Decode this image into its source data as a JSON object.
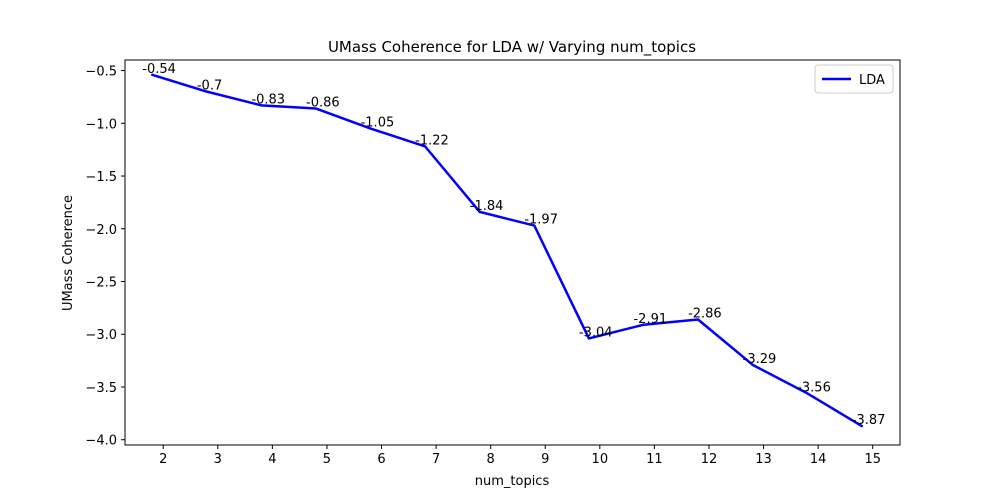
{
  "chart_data": {
    "type": "line",
    "title": "UMass Coherence for LDA w/ Varying num_topics",
    "xlabel": "num_topics",
    "ylabel": "UMass Coherence",
    "xlim": [
      1.3,
      15.5
    ],
    "ylim": [
      -4.05,
      -0.4
    ],
    "x_ticks": [
      2,
      3,
      4,
      5,
      6,
      7,
      8,
      9,
      10,
      11,
      12,
      13,
      14,
      15
    ],
    "y_ticks": [
      -4.0,
      -3.5,
      -3.0,
      -2.5,
      -2.0,
      -1.5,
      -1.0,
      -0.5
    ],
    "y_tick_labels": [
      "−4.0",
      "−3.5",
      "−3.0",
      "−2.5",
      "−2.0",
      "−1.5",
      "−1.0",
      "−0.5"
    ],
    "grid": false,
    "legend": {
      "placement": "top-right"
    },
    "series": [
      {
        "name": "LDA",
        "color": "#0000ff",
        "x": [
          1.8,
          2.8,
          3.8,
          4.8,
          5.8,
          6.8,
          7.8,
          8.8,
          9.8,
          10.8,
          11.8,
          12.8,
          13.8,
          14.8
        ],
        "values": [
          -0.54,
          -0.7,
          -0.83,
          -0.86,
          -1.05,
          -1.22,
          -1.84,
          -1.97,
          -3.04,
          -2.91,
          -2.86,
          -3.29,
          -3.56,
          -3.87
        ],
        "labels": [
          "-0.54",
          "-0.7",
          "-0.83",
          "-0.86",
          "-1.05",
          "-1.22",
          "-1.84",
          "-1.97",
          "-3.04",
          "-2.91",
          "-2.86",
          "-3.29",
          "-3.56",
          "-3.87"
        ]
      }
    ]
  }
}
